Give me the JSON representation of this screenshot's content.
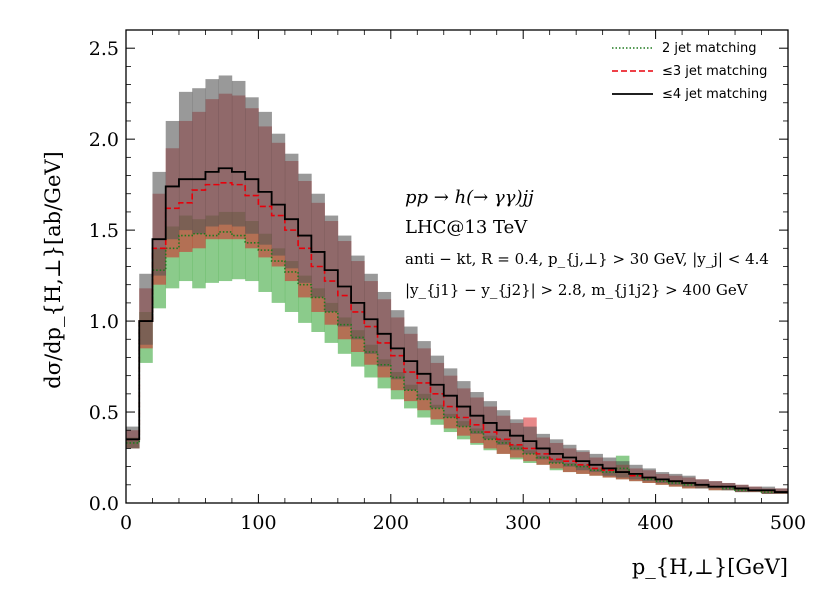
{
  "chart_data": {
    "type": "step-histogram",
    "title": "",
    "xlabel": "p_{H,⊥}[GeV]",
    "ylabel": "dσ/dp_{H,⊥}[ab/GeV]",
    "xlim": [
      0,
      500
    ],
    "ylim": [
      0,
      2.6
    ],
    "xticks": [
      0,
      100,
      200,
      300,
      400,
      500
    ],
    "xtick_labels": [
      "0",
      "100",
      "200",
      "300",
      "400",
      "500"
    ],
    "yticks": [
      0.0,
      0.5,
      1.0,
      1.5,
      2.0,
      2.5
    ],
    "ytick_labels": [
      "0.0",
      "0.5",
      "1.0",
      "1.5",
      "2.0",
      "2.5"
    ],
    "legend_position": "top-right",
    "bin_width": 10,
    "bin_edges_start": 0,
    "annotations": [
      "pp → h(→ γγ)jj",
      "LHC@13 TeV",
      "anti − kt, R = 0.4, p_{j,⊥} > 30 GeV, |y_j| < 4.4",
      "|y_{j1} − y_{j2}| > 2.8, m_{j1j2} > 400 GeV"
    ],
    "series": [
      {
        "name": "2 jet matching",
        "style": "dotted",
        "color": "#1f7a1f",
        "band_color": "#2ca02c",
        "values": [
          0.33,
          1.0,
          1.28,
          1.4,
          1.47,
          1.48,
          1.47,
          1.49,
          1.47,
          1.43,
          1.39,
          1.33,
          1.27,
          1.2,
          1.13,
          1.05,
          0.98,
          0.91,
          0.83,
          0.76,
          0.69,
          0.62,
          0.57,
          0.52,
          0.47,
          0.42,
          0.39,
          0.35,
          0.33,
          0.3,
          0.27,
          0.25,
          0.22,
          0.21,
          0.2,
          0.18,
          0.17,
          0.19,
          0.15,
          0.13,
          0.12,
          0.11,
          0.1,
          0.1,
          0.09,
          0.08,
          0.07,
          0.07,
          0.06,
          0.06
        ],
        "band_low": [
          0.3,
          0.77,
          1.07,
          1.18,
          1.22,
          1.18,
          1.21,
          1.22,
          1.23,
          1.22,
          1.16,
          1.1,
          1.05,
          0.99,
          0.94,
          0.88,
          0.82,
          0.75,
          0.69,
          0.63,
          0.57,
          0.52,
          0.47,
          0.43,
          0.39,
          0.35,
          0.32,
          0.29,
          0.27,
          0.24,
          0.22,
          0.21,
          0.18,
          0.17,
          0.16,
          0.15,
          0.14,
          0.13,
          0.12,
          0.11,
          0.1,
          0.09,
          0.08,
          0.08,
          0.07,
          0.07,
          0.06,
          0.06,
          0.05,
          0.05
        ],
        "band_high": [
          0.36,
          1.05,
          1.4,
          1.52,
          1.58,
          1.56,
          1.58,
          1.6,
          1.6,
          1.55,
          1.48,
          1.4,
          1.33,
          1.25,
          1.18,
          1.1,
          1.02,
          0.95,
          0.87,
          0.79,
          0.72,
          0.65,
          0.6,
          0.54,
          0.49,
          0.45,
          0.41,
          0.37,
          0.35,
          0.32,
          0.29,
          0.26,
          0.24,
          0.22,
          0.21,
          0.19,
          0.18,
          0.26,
          0.16,
          0.14,
          0.13,
          0.12,
          0.11,
          0.1,
          0.09,
          0.08,
          0.08,
          0.07,
          0.07,
          0.06
        ]
      },
      {
        "name": "≤3 jet matching",
        "style": "dashed",
        "color": "#e8000b",
        "band_color": "#d62728",
        "values": [
          0.35,
          1.0,
          1.4,
          1.62,
          1.65,
          1.72,
          1.75,
          1.76,
          1.75,
          1.69,
          1.63,
          1.58,
          1.5,
          1.4,
          1.3,
          1.22,
          1.14,
          1.05,
          0.97,
          0.88,
          0.81,
          0.72,
          0.66,
          0.6,
          0.53,
          0.47,
          0.43,
          0.39,
          0.35,
          0.32,
          0.3,
          0.27,
          0.24,
          0.23,
          0.21,
          0.19,
          0.18,
          0.17,
          0.15,
          0.14,
          0.13,
          0.12,
          0.11,
          0.1,
          0.09,
          0.09,
          0.08,
          0.07,
          0.07,
          0.06
        ],
        "band_low": [
          0.3,
          0.85,
          1.2,
          1.35,
          1.38,
          1.4,
          1.45,
          1.45,
          1.45,
          1.4,
          1.35,
          1.3,
          1.22,
          1.13,
          1.05,
          0.98,
          0.9,
          0.83,
          0.76,
          0.69,
          0.62,
          0.56,
          0.51,
          0.46,
          0.41,
          0.37,
          0.33,
          0.3,
          0.27,
          0.25,
          0.23,
          0.21,
          0.19,
          0.17,
          0.16,
          0.15,
          0.14,
          0.13,
          0.12,
          0.11,
          0.1,
          0.09,
          0.08,
          0.08,
          0.07,
          0.07,
          0.06,
          0.06,
          0.05,
          0.05
        ],
        "band_high": [
          0.4,
          1.18,
          1.7,
          1.95,
          2.1,
          2.15,
          2.22,
          2.25,
          2.24,
          2.17,
          2.07,
          1.98,
          1.88,
          1.77,
          1.65,
          1.55,
          1.44,
          1.33,
          1.22,
          1.12,
          1.02,
          0.93,
          0.85,
          0.77,
          0.7,
          0.63,
          0.58,
          0.53,
          0.48,
          0.44,
          0.47,
          0.36,
          0.33,
          0.3,
          0.28,
          0.25,
          0.23,
          0.21,
          0.19,
          0.18,
          0.16,
          0.15,
          0.14,
          0.13,
          0.12,
          0.11,
          0.1,
          0.09,
          0.08,
          0.08
        ]
      },
      {
        "name": "≤4 jet matching",
        "style": "solid",
        "color": "#000000",
        "band_color": "#555555",
        "values": [
          0.35,
          1.0,
          1.45,
          1.74,
          1.78,
          1.78,
          1.82,
          1.84,
          1.82,
          1.78,
          1.71,
          1.64,
          1.56,
          1.47,
          1.38,
          1.28,
          1.19,
          1.1,
          1.01,
          0.93,
          0.85,
          0.78,
          0.71,
          0.65,
          0.59,
          0.53,
          0.48,
          0.44,
          0.4,
          0.37,
          0.34,
          0.3,
          0.27,
          0.25,
          0.23,
          0.21,
          0.19,
          0.17,
          0.16,
          0.14,
          0.13,
          0.12,
          0.11,
          0.1,
          0.09,
          0.09,
          0.08,
          0.07,
          0.07,
          0.06
        ],
        "band_low": [
          0.3,
          0.87,
          1.25,
          1.45,
          1.5,
          1.48,
          1.52,
          1.53,
          1.52,
          1.48,
          1.42,
          1.36,
          1.29,
          1.21,
          1.13,
          1.05,
          0.97,
          0.9,
          0.82,
          0.75,
          0.68,
          0.62,
          0.57,
          0.52,
          0.47,
          0.42,
          0.38,
          0.35,
          0.32,
          0.29,
          0.27,
          0.24,
          0.22,
          0.2,
          0.18,
          0.17,
          0.15,
          0.14,
          0.13,
          0.12,
          0.11,
          0.1,
          0.09,
          0.08,
          0.08,
          0.07,
          0.06,
          0.06,
          0.05,
          0.05
        ],
        "band_high": [
          0.42,
          1.26,
          1.82,
          2.1,
          2.26,
          2.28,
          2.33,
          2.35,
          2.32,
          2.23,
          2.15,
          2.03,
          1.92,
          1.81,
          1.7,
          1.58,
          1.47,
          1.36,
          1.26,
          1.16,
          1.06,
          0.97,
          0.89,
          0.81,
          0.74,
          0.67,
          0.61,
          0.56,
          0.51,
          0.46,
          0.42,
          0.38,
          0.35,
          0.32,
          0.29,
          0.27,
          0.25,
          0.23,
          0.21,
          0.19,
          0.17,
          0.16,
          0.15,
          0.13,
          0.12,
          0.11,
          0.1,
          0.09,
          0.09,
          0.08
        ]
      }
    ]
  }
}
